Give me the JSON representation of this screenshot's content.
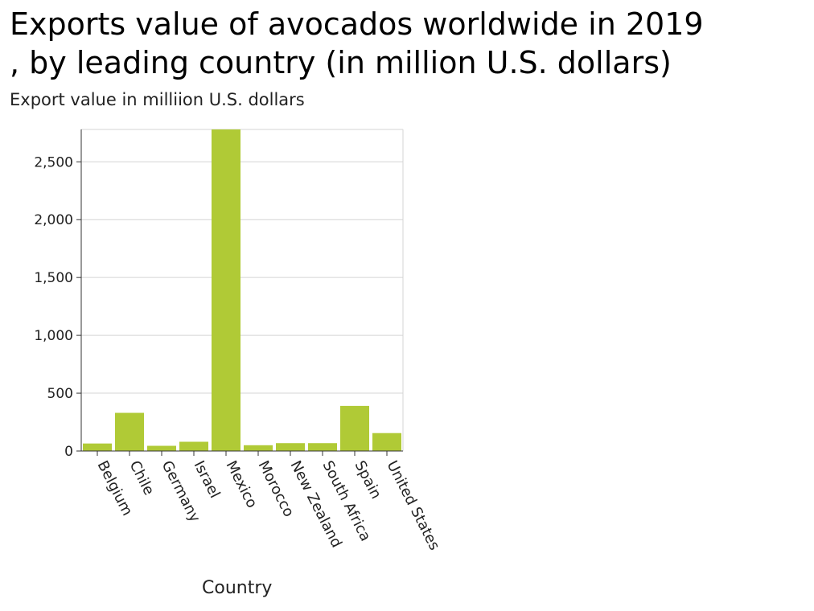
{
  "chart_data": {
    "type": "bar",
    "title_lines": [
      "Exports value of avocados worldwide in 2019",
      ", by leading country (in million U.S. dollars)"
    ],
    "xlabel": "Country",
    "ylabel": "Export value in milliion U.S. dollars",
    "categories": [
      "Belgium",
      "Chile",
      "Germany",
      "Israel",
      "Mexico",
      "Morocco",
      "New Zealand",
      "South Africa",
      "Spain",
      "United States"
    ],
    "values": [
      65,
      330,
      45,
      80,
      2790,
      50,
      68,
      68,
      390,
      155
    ],
    "yticks": [
      0,
      500,
      1000,
      1500,
      2000,
      2500
    ],
    "ytick_labels": [
      "0",
      "500",
      "1,000",
      "1,500",
      "2,000",
      "2,500"
    ],
    "ylim": [
      0,
      2780
    ],
    "grid": true,
    "bar_color": "#b0ca36"
  }
}
